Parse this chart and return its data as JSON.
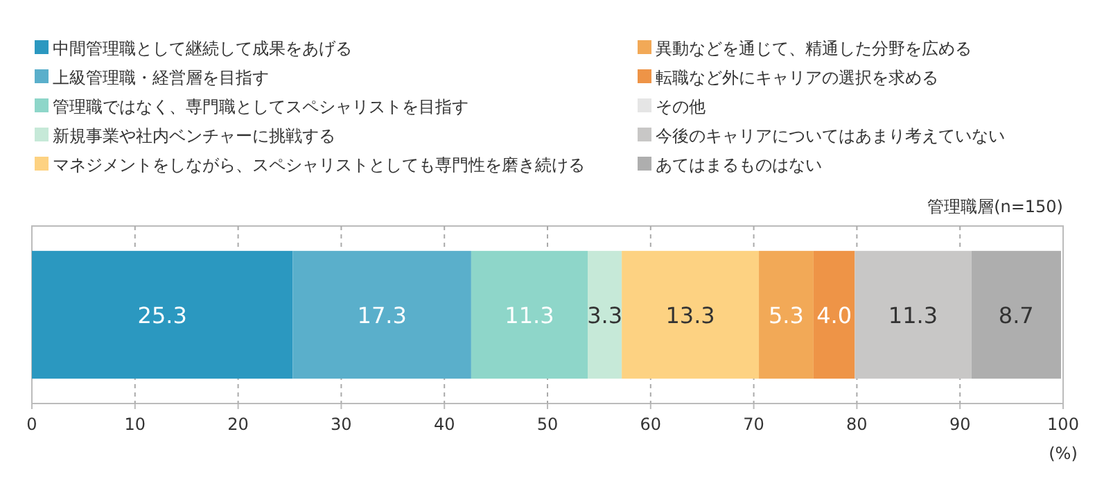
{
  "chart_data": {
    "type": "bar",
    "orientation": "horizontal",
    "stacked": true,
    "categories": [
      null
    ],
    "annotations": [
      "管理職層(n=150)"
    ],
    "xlim": [
      0,
      100
    ],
    "xticks": [
      0,
      10,
      20,
      30,
      40,
      50,
      60,
      70,
      80,
      90,
      100
    ],
    "xlabel": "(%)",
    "grid": "x",
    "legend": "top",
    "series": [
      {
        "name": "中間管理職として継続して成果をあげる",
        "color": "#2b98c0",
        "values": [
          25.3
        ],
        "value_labels": [
          "25.3"
        ]
      },
      {
        "name": "上級管理職・経営層を目指す",
        "color": "#5aafcb",
        "values": [
          17.3
        ],
        "value_labels": [
          "17.3"
        ]
      },
      {
        "name": "管理職ではなく、専門職としてスペシャリストを目指す",
        "color": "#8ed6c9",
        "values": [
          11.3
        ],
        "value_labels": [
          "11.3"
        ]
      },
      {
        "name": "新規事業や社内ベンチャーに挑戦する",
        "color": "#c6e9d8",
        "values": [
          3.3
        ],
        "value_labels": [
          "3.3"
        ]
      },
      {
        "name": "マネジメントをしながら、スペシャリストとしても専門性を磨き続ける",
        "color": "#fdd282",
        "values": [
          13.3
        ],
        "value_labels": [
          "13.3"
        ]
      },
      {
        "name": "異動などを通じて、精通した分野を広める",
        "color": "#f2a957",
        "values": [
          5.3
        ],
        "value_labels": [
          "5.3"
        ]
      },
      {
        "name": "転職など外にキャリアの選択を求める",
        "color": "#ee9447",
        "values": [
          4.0
        ],
        "value_labels": [
          "4.0"
        ]
      },
      {
        "name": "その他",
        "color": "#e5e5e5",
        "values": [
          null
        ],
        "value_labels": [
          null
        ]
      },
      {
        "name": "今後のキャリアについてはあまり考えていない",
        "color": "#c8c7c6",
        "values": [
          11.3
        ],
        "value_labels": [
          "11.3"
        ]
      },
      {
        "name": "あてはまるものはない",
        "color": "#aeaeae",
        "values": [
          8.7
        ],
        "value_labels": [
          "8.7"
        ]
      }
    ]
  }
}
